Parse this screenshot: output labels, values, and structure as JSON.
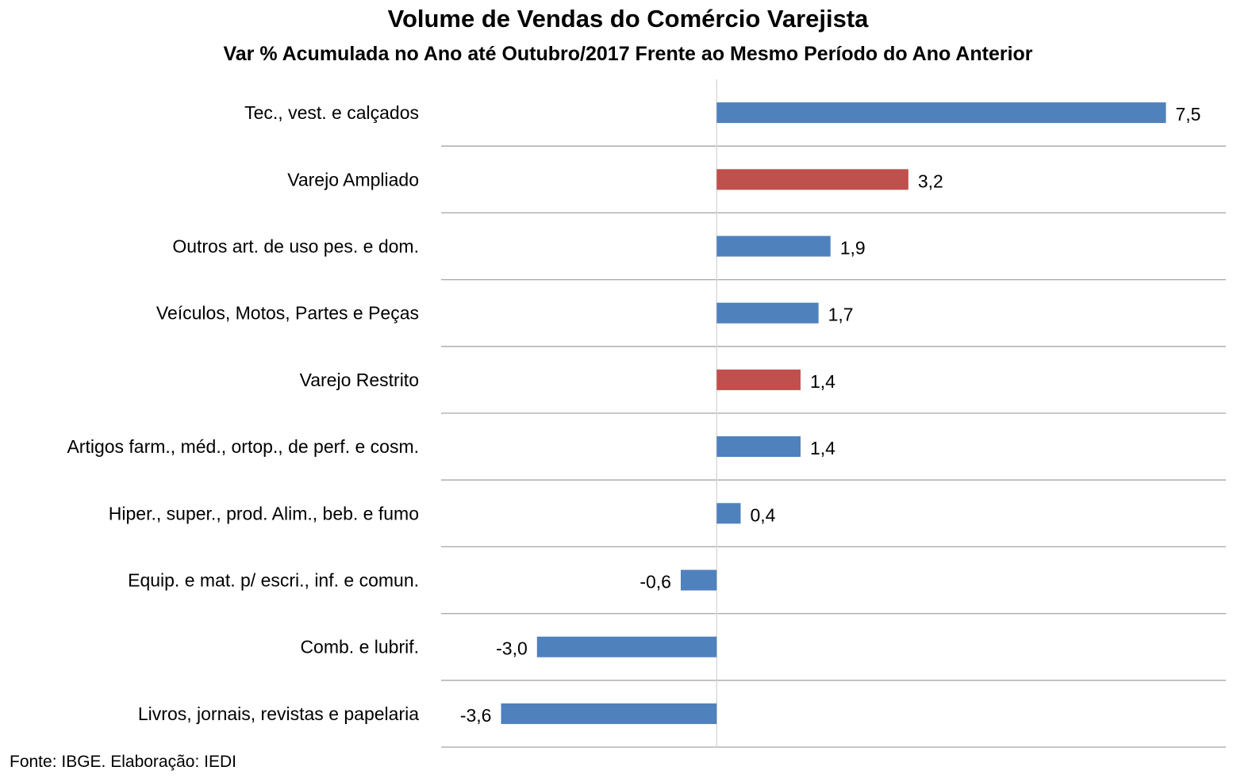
{
  "chart_data": {
    "type": "bar",
    "orientation": "horizontal",
    "title": "Volume de Vendas do Comércio Varejista",
    "subtitle": "Var % Acumulada no Ano até Outubro/2017 Frente ao Mesmo Período do Ano Anterior",
    "categories": [
      "Tec., vest. e calçados",
      "Varejo Ampliado",
      "Outros art. de uso pes. e dom.",
      "Veículos, Motos, Partes e Peças",
      "Varejo Restrito",
      "Artigos farm., méd., ortop., de perf. e cosm.",
      "Hiper., super., prod. Alim., beb. e fumo",
      "Equip. e mat. p/ escri., inf. e comun.",
      "Comb. e lubrif.",
      "Livros, jornais, revistas e papelaria"
    ],
    "values": [
      7.5,
      3.2,
      1.9,
      1.7,
      1.4,
      1.4,
      0.4,
      -0.6,
      -3.0,
      -3.6
    ],
    "value_labels": [
      "7,5",
      "3,2",
      "1,9",
      "1,7",
      "1,4",
      "1,4",
      "0,4",
      "-0,6",
      "-3,0",
      "-3,6"
    ],
    "highlight": [
      false,
      true,
      false,
      false,
      true,
      false,
      false,
      false,
      false,
      false
    ],
    "xlim": [
      -4.6,
      8.5
    ],
    "grid": "horizontal separators",
    "legend": "none",
    "colors": {
      "bar": "#4F81BD",
      "highlight": "#C0504D",
      "grid": "#A6A6A6",
      "axis": "#D9D9D9"
    }
  },
  "source": "Fonte: IBGE. Elaboração: IEDI"
}
